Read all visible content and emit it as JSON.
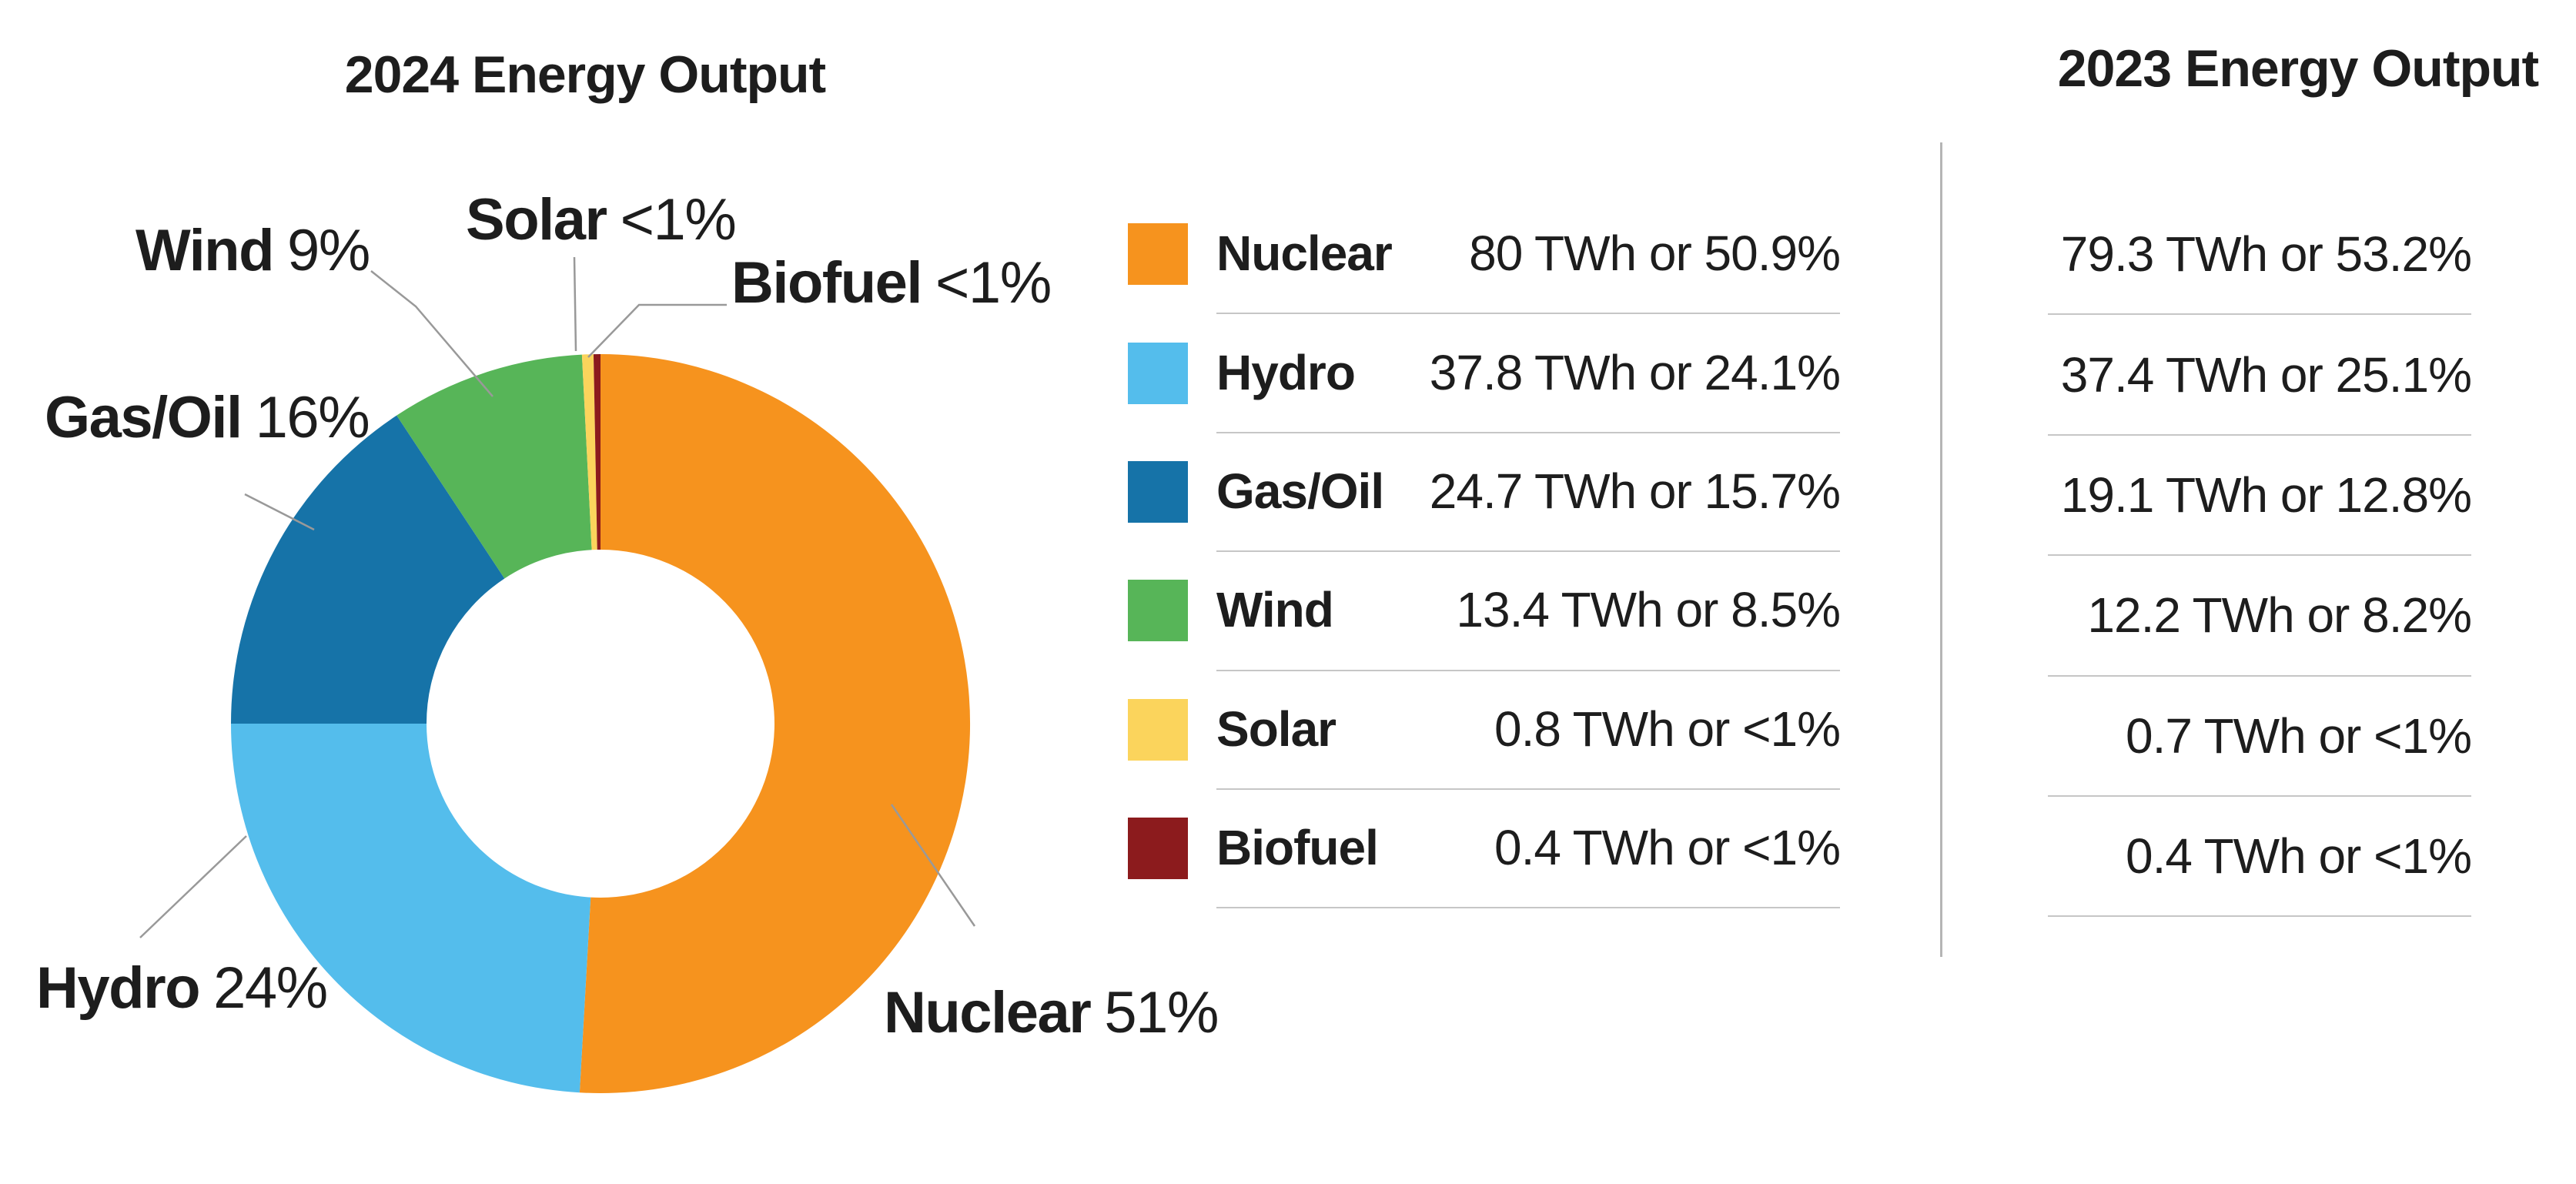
{
  "chart_data": {
    "type": "pie",
    "subtype": "donut",
    "title_2024": "2024 Energy Output",
    "title_2023": "2023 Energy Output",
    "unit": "TWh",
    "legend_position": "right",
    "order_clockwise_from_top": [
      "Nuclear",
      "Hydro",
      "Gas/Oil",
      "Wind",
      "Solar",
      "Biofuel"
    ],
    "series": [
      {
        "name": "Nuclear",
        "color": "#F6931E",
        "twh_2024": 80,
        "pct_2024": 50.9,
        "legend_2024": "80 TWh or 50.9%",
        "twh_2023": 79.3,
        "col_2023": "79.3 TWh or 53.2%",
        "callout_label": "Nuclear",
        "callout_value": "51%"
      },
      {
        "name": "Hydro",
        "color": "#54BDEC",
        "twh_2024": 37.8,
        "pct_2024": 24.1,
        "legend_2024": "37.8 TWh or 24.1%",
        "twh_2023": 37.4,
        "col_2023": "37.4 TWh or 25.1%",
        "callout_label": "Hydro",
        "callout_value": "24%"
      },
      {
        "name": "Gas/Oil",
        "color": "#1673A8",
        "twh_2024": 24.7,
        "pct_2024": 15.7,
        "legend_2024": "24.7 TWh or 15.7%",
        "twh_2023": 19.1,
        "col_2023": "19.1 TWh or 12.8%",
        "callout_label": "Gas/Oil",
        "callout_value": "16%"
      },
      {
        "name": "Wind",
        "color": "#57B558",
        "twh_2024": 13.4,
        "pct_2024": 8.5,
        "legend_2024": "13.4 TWh or 8.5%",
        "twh_2023": 12.2,
        "col_2023": "12.2 TWh or 8.2%",
        "callout_label": "Wind",
        "callout_value": "9%"
      },
      {
        "name": "Solar",
        "color": "#FBD45C",
        "twh_2024": 0.8,
        "pct_2024": 0.5,
        "legend_2024": "0.8 TWh or <1%",
        "twh_2023": 0.7,
        "col_2023": "0.7 TWh or <1%",
        "callout_label": "Solar",
        "callout_value": "<1%"
      },
      {
        "name": "Biofuel",
        "color": "#8C1B1D",
        "twh_2024": 0.4,
        "pct_2024": 0.3,
        "legend_2024": "0.4 TWh or <1%",
        "twh_2023": 0.4,
        "col_2023": "0.4 TWh or <1%",
        "callout_label": "Biofuel",
        "callout_value": "<1%"
      }
    ],
    "geometry": {
      "cx": 780,
      "cy": 940,
      "outer_radius": 480,
      "inner_radius": 226
    }
  }
}
